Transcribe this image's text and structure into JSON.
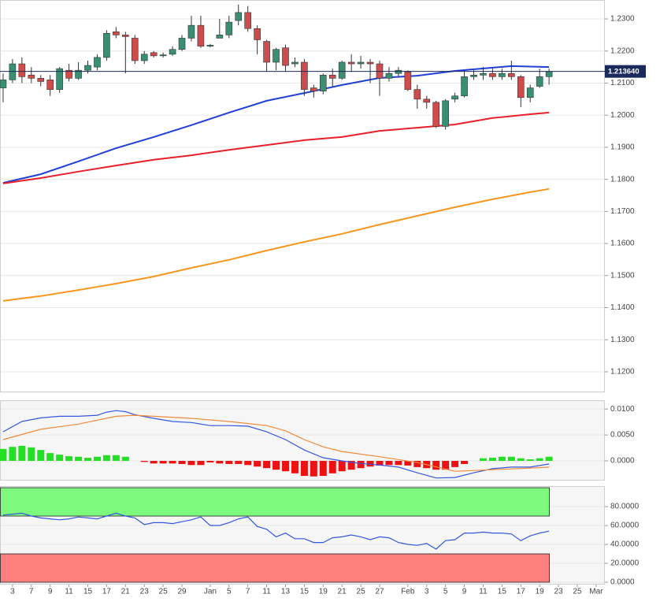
{
  "chart_data": [
    {
      "type": "candlestick",
      "xlim": [
        -0.33,
        63.93
      ],
      "ylim": [
        1.1136,
        1.2359
      ],
      "grid": true,
      "yticks": [
        {
          "value": 1.23,
          "label": "1.2300"
        },
        {
          "value": 1.22,
          "label": "1.2200"
        },
        {
          "value": 1.21,
          "label": "1.2100"
        },
        {
          "value": 1.2,
          "label": "1.2000"
        },
        {
          "value": 1.19,
          "label": "1.1900"
        },
        {
          "value": 1.18,
          "label": "1.1800"
        },
        {
          "value": 1.17,
          "label": "1.1700"
        },
        {
          "value": 1.16,
          "label": "1.1600"
        },
        {
          "value": 1.15,
          "label": "1.1500"
        },
        {
          "value": 1.14,
          "label": "1.1400"
        },
        {
          "value": 1.13,
          "label": "1.1300"
        },
        {
          "value": 1.12,
          "label": "1.1200"
        }
      ],
      "up_color": "#3a8f72",
      "down_color": "#cd4c4c",
      "x": [
        0,
        1,
        2,
        3,
        4,
        5,
        6,
        7,
        8,
        9,
        10,
        11,
        12,
        13,
        14,
        15,
        16,
        17,
        18,
        19,
        20,
        21,
        22,
        23,
        24,
        25,
        26,
        27,
        28,
        29,
        30,
        31,
        32,
        33,
        34,
        35,
        36,
        37,
        38,
        39,
        40,
        41,
        42,
        43,
        44,
        45,
        46,
        47,
        48,
        49,
        50,
        51,
        52,
        53,
        54,
        55,
        56,
        57,
        58
      ],
      "open": [
        1.2085,
        1.211,
        1.216,
        1.2125,
        1.2115,
        1.211,
        1.208,
        1.214,
        1.2115,
        1.214,
        1.215,
        1.218,
        1.226,
        1.225,
        1.224,
        1.217,
        1.2195,
        1.2185,
        1.219,
        1.2205,
        1.224,
        1.228,
        1.2215,
        1.224,
        1.225,
        1.2295,
        1.232,
        1.227,
        1.223,
        1.2165,
        1.221,
        1.216,
        1.2165,
        1.2085,
        1.2075,
        1.2125,
        1.2115,
        1.2165,
        1.216,
        1.2165,
        1.216,
        1.2115,
        1.213,
        1.2135,
        1.208,
        1.205,
        1.204,
        1.1965,
        1.205,
        1.206,
        1.212,
        1.2125,
        1.213,
        1.212,
        1.213,
        1.212,
        1.2055,
        1.209,
        1.212
      ],
      "high": [
        1.213,
        1.2175,
        1.218,
        1.215,
        1.2125,
        1.2125,
        1.215,
        1.216,
        1.2165,
        1.217,
        1.219,
        1.2265,
        1.2275,
        1.226,
        1.225,
        1.22,
        1.22,
        1.2195,
        1.2215,
        1.225,
        1.231,
        1.231,
        1.2222,
        1.23,
        1.231,
        1.2345,
        1.234,
        1.228,
        1.2235,
        1.221,
        1.222,
        1.218,
        1.2175,
        1.2095,
        1.213,
        1.2145,
        1.217,
        1.219,
        1.2185,
        1.2175,
        1.217,
        1.215,
        1.215,
        1.214,
        1.2095,
        1.206,
        1.2045,
        1.205,
        1.207,
        1.214,
        1.214,
        1.215,
        1.2145,
        1.2145,
        1.217,
        1.2125,
        1.2095,
        1.2145,
        1.2145
      ],
      "low": [
        1.204,
        1.21,
        1.21,
        1.21,
        1.209,
        1.206,
        1.207,
        1.2105,
        1.211,
        1.213,
        1.214,
        1.217,
        1.224,
        1.213,
        1.216,
        1.216,
        1.218,
        1.218,
        1.2185,
        1.22,
        1.223,
        1.221,
        1.2212,
        1.224,
        1.224,
        1.228,
        1.226,
        1.219,
        1.2135,
        1.214,
        1.2135,
        1.215,
        1.206,
        1.2055,
        1.2065,
        1.209,
        1.211,
        1.2135,
        1.2145,
        1.21,
        1.206,
        1.2105,
        1.212,
        1.2075,
        1.202,
        1.202,
        1.196,
        1.1955,
        1.204,
        1.2055,
        1.211,
        1.211,
        1.211,
        1.211,
        1.211,
        1.2025,
        1.204,
        1.2085,
        1.2095
      ],
      "close": [
        1.211,
        1.216,
        1.212,
        1.2115,
        1.2105,
        1.208,
        1.2145,
        1.2115,
        1.214,
        1.2155,
        1.218,
        1.2255,
        1.225,
        1.2245,
        1.217,
        1.219,
        1.2185,
        1.2188,
        1.2205,
        1.224,
        1.228,
        1.2215,
        1.2218,
        1.225,
        1.229,
        1.232,
        1.227,
        1.2235,
        1.2165,
        1.2205,
        1.2155,
        1.2165,
        1.208,
        1.2075,
        1.2125,
        1.2115,
        1.2165,
        1.216,
        1.2165,
        1.216,
        1.2115,
        1.213,
        1.214,
        1.208,
        1.205,
        1.204,
        1.1965,
        1.2045,
        1.206,
        1.212,
        1.2125,
        1.213,
        1.212,
        1.213,
        1.212,
        1.2055,
        1.2085,
        1.212,
        1.2136
      ],
      "lines": [
        {
          "color": "#1f3fd6",
          "x": [
            0,
            4,
            8,
            12,
            16,
            20,
            24,
            28,
            32,
            36,
            40,
            44,
            48,
            52,
            54,
            58
          ],
          "values": [
            1.1789,
            1.1816,
            1.1856,
            1.1897,
            1.1932,
            1.1969,
            1.2008,
            1.2045,
            1.2069,
            1.2094,
            1.2116,
            1.2123,
            1.2138,
            1.2148,
            1.2153,
            1.215
          ]
        },
        {
          "color": "#e8202a",
          "x": [
            0,
            4,
            8,
            12,
            16,
            20,
            24,
            28,
            32,
            36,
            40,
            44,
            48,
            52,
            56,
            58
          ],
          "values": [
            1.1787,
            1.1804,
            1.1824,
            1.1843,
            1.1861,
            1.1875,
            1.1892,
            1.1907,
            1.1922,
            1.1932,
            1.1951,
            1.1961,
            1.1971,
            1.1991,
            1.2003,
            1.2008
          ]
        },
        {
          "color": "#f7961e",
          "x": [
            0,
            4,
            8,
            12,
            16,
            20,
            24,
            28,
            32,
            36,
            40,
            44,
            48,
            52,
            56,
            58
          ],
          "values": [
            1.1421,
            1.1436,
            1.1455,
            1.1475,
            1.1497,
            1.1524,
            1.1549,
            1.1578,
            1.1605,
            1.163,
            1.1659,
            1.1686,
            1.1713,
            1.1738,
            1.176,
            1.177
          ]
        }
      ],
      "last_price": {
        "value": 1.21364,
        "label": "1.213640"
      },
      "last_price_color": "#1b2a5c"
    },
    {
      "type": "macd",
      "xlim": [
        -0.33,
        63.93
      ],
      "ylim": [
        -0.0038,
        0.0117
      ],
      "grid": true,
      "yticks": [
        {
          "value": 0.01,
          "label": "0.0100"
        },
        {
          "value": 0.005,
          "label": "0.0050"
        },
        {
          "value": 0,
          "label": "0.0000"
        }
      ],
      "up_color": "#22e022",
      "down_color": "#ee1111",
      "x": [
        0,
        1,
        2,
        3,
        4,
        5,
        6,
        7,
        8,
        9,
        10,
        11,
        12,
        13,
        14,
        15,
        16,
        17,
        18,
        19,
        20,
        21,
        22,
        23,
        24,
        25,
        26,
        27,
        28,
        29,
        30,
        31,
        32,
        33,
        34,
        35,
        36,
        37,
        38,
        39,
        40,
        41,
        42,
        43,
        44,
        45,
        46,
        47,
        48,
        49,
        50,
        51,
        52,
        53,
        54,
        55,
        56,
        57,
        58
      ],
      "histogram": [
        0.0023,
        0.0027,
        0.0029,
        0.0026,
        0.0021,
        0.0015,
        0.0012,
        0.0009,
        0.0008,
        0.0006,
        0.0008,
        0.0011,
        0.0011,
        0.0008,
        0,
        -0.0002,
        -0.0005,
        -0.0005,
        -0.0005,
        -0.0006,
        -0.0008,
        -0.0008,
        -0.0003,
        -0.0005,
        -0.0006,
        -0.0006,
        -0.0008,
        -0.0011,
        -0.0014,
        -0.0017,
        -0.002,
        -0.0024,
        -0.0029,
        -0.003,
        -0.0029,
        -0.0024,
        -0.002,
        -0.0017,
        -0.0014,
        -0.0011,
        -0.0009,
        -0.0008,
        -0.0008,
        -0.0009,
        -0.0012,
        -0.0014,
        -0.0017,
        -0.0017,
        -0.0012,
        -0.0006,
        0,
        0.0005,
        0.0006,
        0.0008,
        0.0008,
        0.0005,
        0.0003,
        0.0005,
        0.0008
      ],
      "lines": [
        {
          "color": "#3557e0",
          "x": [
            0,
            2,
            4,
            6,
            8,
            10,
            11,
            12,
            13,
            14,
            16,
            18,
            20,
            22,
            24,
            26,
            28,
            30,
            32,
            34,
            36,
            38,
            40,
            42,
            44,
            46,
            48,
            50,
            52,
            54,
            56,
            58
          ],
          "values": [
            0.0056,
            0.0076,
            0.0083,
            0.0086,
            0.0086,
            0.0088,
            0.0094,
            0.0097,
            0.0095,
            0.0089,
            0.0082,
            0.0076,
            0.0074,
            0.0068,
            0.0068,
            0.0067,
            0.0056,
            0.0041,
            0.0021,
            0.0006,
            0,
            -0.0005,
            -0.0008,
            -0.0012,
            -0.0023,
            -0.0033,
            -0.0032,
            -0.0023,
            -0.0015,
            -0.0012,
            -0.0012,
            -0.0006
          ]
        },
        {
          "color": "#f08a3a",
          "x": [
            0,
            4,
            8,
            12,
            14,
            16,
            20,
            24,
            28,
            30,
            32,
            34,
            36,
            40,
            44,
            48,
            52,
            56,
            58
          ],
          "values": [
            0.0041,
            0.0061,
            0.0071,
            0.0086,
            0.0088,
            0.0086,
            0.0082,
            0.0076,
            0.0068,
            0.0058,
            0.0041,
            0.0027,
            0.0018,
            0.0008,
            -0.0003,
            -0.002,
            -0.0017,
            -0.0014,
            -0.0012
          ]
        }
      ]
    },
    {
      "type": "rsi",
      "xlim": [
        -0.33,
        63.93
      ],
      "ylim": [
        -2.5,
        101.7
      ],
      "grid": true,
      "yticks": [
        {
          "value": 80,
          "label": "80.0000"
        },
        {
          "value": 60,
          "label": "60.0000"
        },
        {
          "value": 40,
          "label": "40.0000"
        },
        {
          "value": 20,
          "label": "20.0000"
        },
        {
          "value": 0,
          "label": "0.0000"
        }
      ],
      "bands": [
        {
          "range": [
            70,
            100
          ],
          "color": "#7dfa7d"
        },
        {
          "range": [
            0,
            30
          ],
          "color": "#ff7f7f"
        }
      ],
      "lines": [
        {
          "color": "#3557e0",
          "x": [
            0,
            1,
            2,
            3,
            4,
            5,
            6,
            7,
            8,
            9,
            10,
            11,
            12,
            13,
            14,
            15,
            16,
            17,
            18,
            19,
            20,
            21,
            22,
            23,
            24,
            25,
            26,
            27,
            28,
            29,
            30,
            31,
            32,
            33,
            34,
            35,
            36,
            37,
            38,
            39,
            40,
            41,
            42,
            43,
            44,
            45,
            46,
            47,
            48,
            49,
            50,
            51,
            52,
            53,
            54,
            55,
            56,
            57,
            58
          ],
          "values": [
            71,
            72,
            73,
            70,
            68,
            67,
            66,
            67,
            69,
            68,
            67,
            70,
            73,
            70,
            68,
            61,
            63,
            63,
            62,
            64,
            66,
            69,
            60,
            60,
            63,
            67,
            69,
            59,
            56,
            48,
            52,
            46,
            46,
            42,
            42,
            47,
            48,
            50,
            48,
            45,
            48,
            47,
            42,
            40,
            39,
            41,
            35,
            44,
            45,
            52,
            52,
            53,
            52,
            52,
            51,
            44,
            49,
            52,
            54
          ]
        }
      ],
      "xticks": [
        {
          "value": 1,
          "label": "3"
        },
        {
          "value": 3,
          "label": "7"
        },
        {
          "value": 5,
          "label": "9"
        },
        {
          "value": 7,
          "label": "11"
        },
        {
          "value": 9,
          "label": "15"
        },
        {
          "value": 11,
          "label": "17"
        },
        {
          "value": 13,
          "label": "21"
        },
        {
          "value": 15,
          "label": "23"
        },
        {
          "value": 17,
          "label": "25"
        },
        {
          "value": 19,
          "label": "29"
        },
        {
          "value": 22,
          "label": "Jan"
        },
        {
          "value": 24,
          "label": "5"
        },
        {
          "value": 26,
          "label": "7"
        },
        {
          "value": 28,
          "label": "11"
        },
        {
          "value": 30,
          "label": "13"
        },
        {
          "value": 32,
          "label": "15"
        },
        {
          "value": 34,
          "label": "19"
        },
        {
          "value": 36,
          "label": "21"
        },
        {
          "value": 38,
          "label": "25"
        },
        {
          "value": 40,
          "label": "27"
        },
        {
          "value": 43,
          "label": "Feb"
        },
        {
          "value": 45,
          "label": "3"
        },
        {
          "value": 47,
          "label": "5"
        },
        {
          "value": 49,
          "label": "9"
        },
        {
          "value": 51,
          "label": "11"
        },
        {
          "value": 53,
          "label": "15"
        },
        {
          "value": 55,
          "label": "17"
        },
        {
          "value": 57,
          "label": "19"
        },
        {
          "value": 59,
          "label": "23"
        },
        {
          "value": 61,
          "label": "25"
        },
        {
          "value": 63,
          "label": "Mar"
        }
      ]
    }
  ]
}
